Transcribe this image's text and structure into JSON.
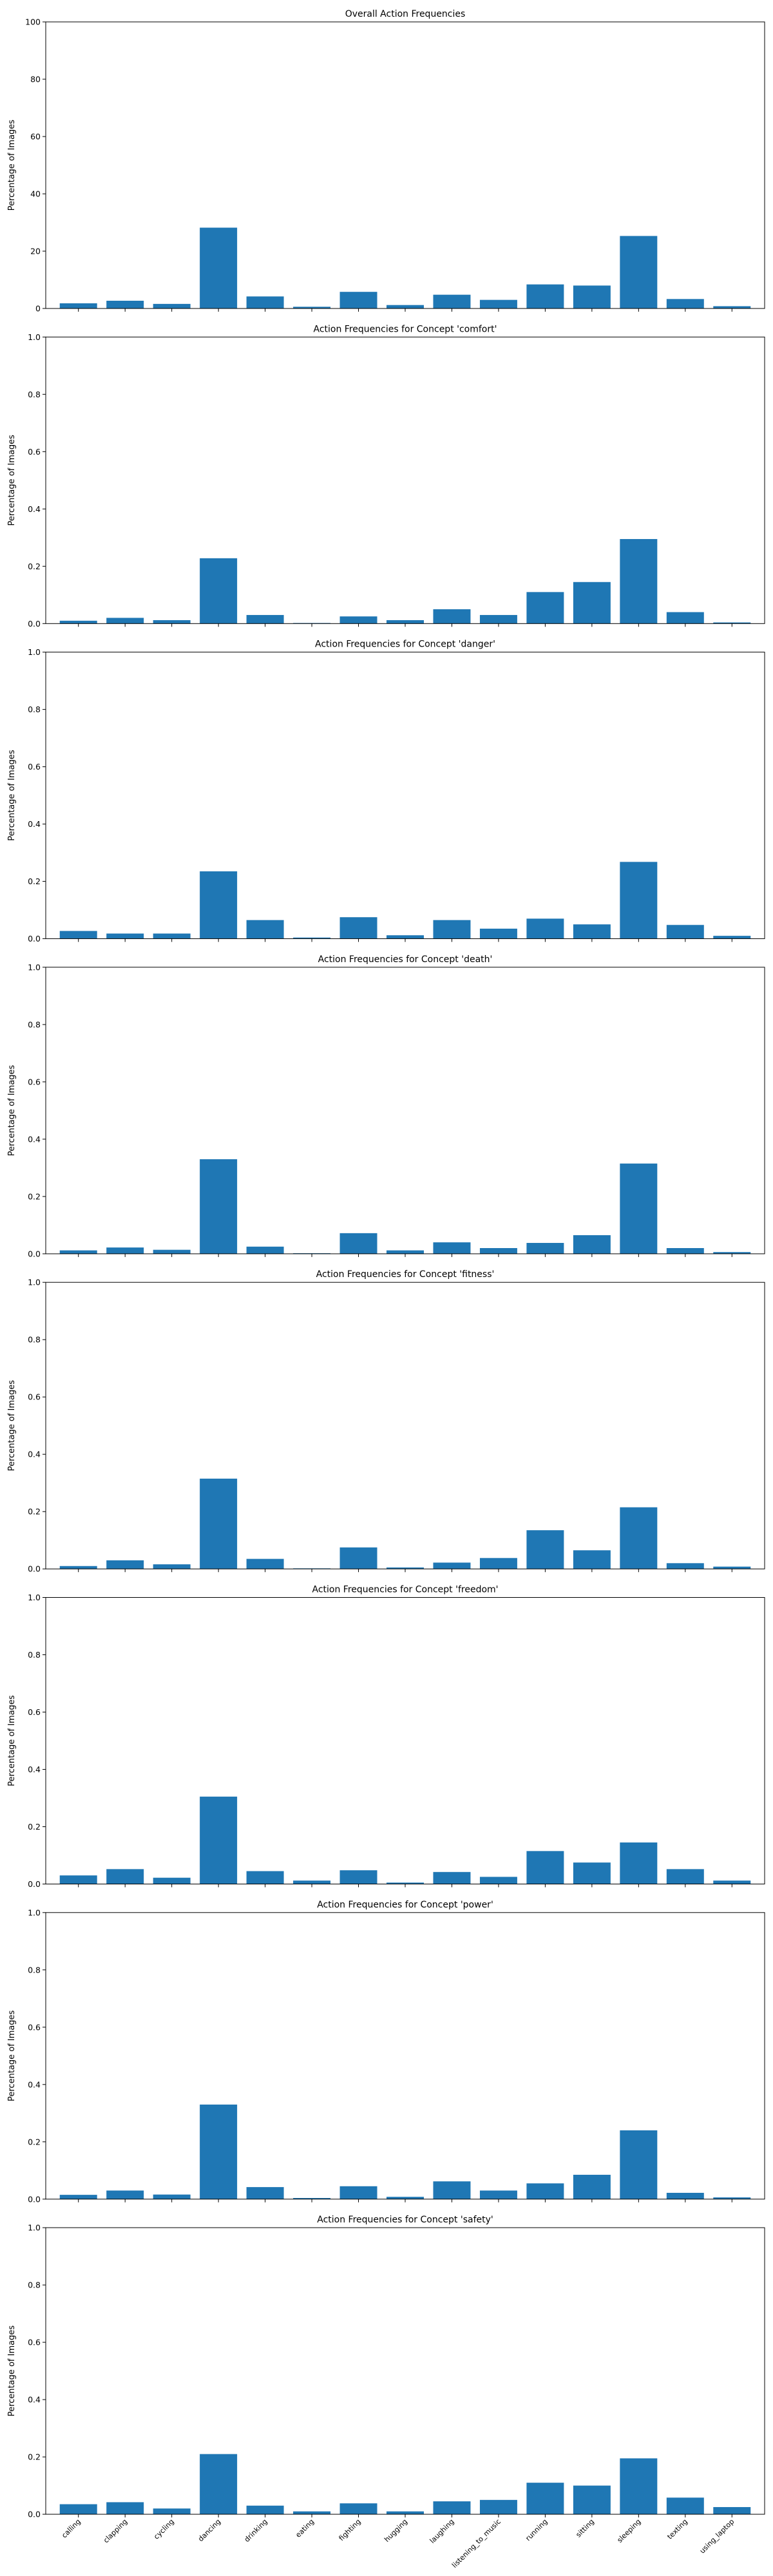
{
  "chart_data": [
    {
      "type": "bar",
      "title": "Overall Action Frequencies",
      "xlabel": "",
      "ylabel": "Percentage of Images",
      "ylim": [
        0,
        100
      ],
      "yticks": [
        "0",
        "20",
        "40",
        "60",
        "80",
        "100"
      ],
      "categories": [
        "calling",
        "clapping",
        "cycling",
        "dancing",
        "drinking",
        "eating",
        "fighting",
        "hugging",
        "laughing",
        "listening_to_music",
        "running",
        "sitting",
        "sleeping",
        "texting",
        "using_laptop"
      ],
      "values": [
        1.8,
        2.7,
        1.6,
        28.2,
        4.2,
        0.6,
        5.8,
        1.2,
        4.8,
        3.0,
        8.4,
        8.0,
        25.3,
        3.3,
        0.8
      ]
    },
    {
      "type": "bar",
      "title": "Action Frequencies for Concept 'comfort'",
      "xlabel": "",
      "ylabel": "Percentage of Images",
      "ylim": [
        0,
        1
      ],
      "yticks": [
        "0.0",
        "0.2",
        "0.4",
        "0.6",
        "0.8",
        "1.0"
      ],
      "categories": [
        "calling",
        "clapping",
        "cycling",
        "dancing",
        "drinking",
        "eating",
        "fighting",
        "hugging",
        "laughing",
        "listening_to_music",
        "running",
        "sitting",
        "sleeping",
        "texting",
        "using_laptop"
      ],
      "values": [
        0.01,
        0.02,
        0.012,
        0.228,
        0.03,
        0.002,
        0.025,
        0.012,
        0.05,
        0.03,
        0.11,
        0.145,
        0.295,
        0.04,
        0.004
      ]
    },
    {
      "type": "bar",
      "title": "Action Frequencies for Concept 'danger'",
      "xlabel": "",
      "ylabel": "Percentage of Images",
      "ylim": [
        0,
        1
      ],
      "yticks": [
        "0.0",
        "0.2",
        "0.4",
        "0.6",
        "0.8",
        "1.0"
      ],
      "categories": [
        "calling",
        "clapping",
        "cycling",
        "dancing",
        "drinking",
        "eating",
        "fighting",
        "hugging",
        "laughing",
        "listening_to_music",
        "running",
        "sitting",
        "sleeping",
        "texting",
        "using_laptop"
      ],
      "values": [
        0.027,
        0.018,
        0.018,
        0.235,
        0.065,
        0.004,
        0.075,
        0.012,
        0.065,
        0.035,
        0.07,
        0.05,
        0.268,
        0.048,
        0.01
      ]
    },
    {
      "type": "bar",
      "title": "Action Frequencies for Concept 'death'",
      "xlabel": "",
      "ylabel": "Percentage of Images",
      "ylim": [
        0,
        1
      ],
      "yticks": [
        "0.0",
        "0.2",
        "0.4",
        "0.6",
        "0.8",
        "1.0"
      ],
      "categories": [
        "calling",
        "clapping",
        "cycling",
        "dancing",
        "drinking",
        "eating",
        "fighting",
        "hugging",
        "laughing",
        "listening_to_music",
        "running",
        "sitting",
        "sleeping",
        "texting",
        "using_laptop"
      ],
      "values": [
        0.012,
        0.022,
        0.014,
        0.33,
        0.025,
        0.002,
        0.072,
        0.012,
        0.04,
        0.02,
        0.038,
        0.065,
        0.315,
        0.02,
        0.006
      ]
    },
    {
      "type": "bar",
      "title": "Action Frequencies for Concept 'fitness'",
      "xlabel": "",
      "ylabel": "Percentage of Images",
      "ylim": [
        0,
        1
      ],
      "yticks": [
        "0.0",
        "0.2",
        "0.4",
        "0.6",
        "0.8",
        "1.0"
      ],
      "categories": [
        "calling",
        "clapping",
        "cycling",
        "dancing",
        "drinking",
        "eating",
        "fighting",
        "hugging",
        "laughing",
        "listening_to_music",
        "running",
        "sitting",
        "sleeping",
        "texting",
        "using_laptop"
      ],
      "values": [
        0.01,
        0.03,
        0.016,
        0.315,
        0.035,
        0.002,
        0.075,
        0.005,
        0.022,
        0.038,
        0.135,
        0.065,
        0.215,
        0.02,
        0.008
      ]
    },
    {
      "type": "bar",
      "title": "Action Frequencies for Concept 'freedom'",
      "xlabel": "",
      "ylabel": "Percentage of Images",
      "ylim": [
        0,
        1
      ],
      "yticks": [
        "0.0",
        "0.2",
        "0.4",
        "0.6",
        "0.8",
        "1.0"
      ],
      "categories": [
        "calling",
        "clapping",
        "cycling",
        "dancing",
        "drinking",
        "eating",
        "fighting",
        "hugging",
        "laughing",
        "listening_to_music",
        "running",
        "sitting",
        "sleeping",
        "texting",
        "using_laptop"
      ],
      "values": [
        0.03,
        0.052,
        0.022,
        0.305,
        0.045,
        0.012,
        0.048,
        0.005,
        0.042,
        0.025,
        0.115,
        0.075,
        0.145,
        0.052,
        0.012
      ]
    },
    {
      "type": "bar",
      "title": "Action Frequencies for Concept 'power'",
      "xlabel": "",
      "ylabel": "Percentage of Images",
      "ylim": [
        0,
        1
      ],
      "yticks": [
        "0.0",
        "0.2",
        "0.4",
        "0.6",
        "0.8",
        "1.0"
      ],
      "categories": [
        "calling",
        "clapping",
        "cycling",
        "dancing",
        "drinking",
        "eating",
        "fighting",
        "hugging",
        "laughing",
        "listening_to_music",
        "running",
        "sitting",
        "sleeping",
        "texting",
        "using_laptop"
      ],
      "values": [
        0.015,
        0.03,
        0.016,
        0.33,
        0.042,
        0.004,
        0.045,
        0.008,
        0.062,
        0.03,
        0.055,
        0.085,
        0.24,
        0.022,
        0.006
      ]
    },
    {
      "type": "bar",
      "title": "Action Frequencies for Concept 'safety'",
      "xlabel": "",
      "ylabel": "Percentage of Images",
      "ylim": [
        0,
        1
      ],
      "yticks": [
        "0.0",
        "0.2",
        "0.4",
        "0.6",
        "0.8",
        "1.0"
      ],
      "categories": [
        "calling",
        "clapping",
        "cycling",
        "dancing",
        "drinking",
        "eating",
        "fighting",
        "hugging",
        "laughing",
        "listening_to_music",
        "running",
        "sitting",
        "sleeping",
        "texting",
        "using_laptop"
      ],
      "values": [
        0.035,
        0.042,
        0.02,
        0.21,
        0.03,
        0.01,
        0.038,
        0.01,
        0.045,
        0.05,
        0.11,
        0.1,
        0.195,
        0.058,
        0.025
      ]
    }
  ],
  "style": {
    "bar_color": "#1f77b4",
    "axis_color": "#000000",
    "text_color": "#000000"
  }
}
